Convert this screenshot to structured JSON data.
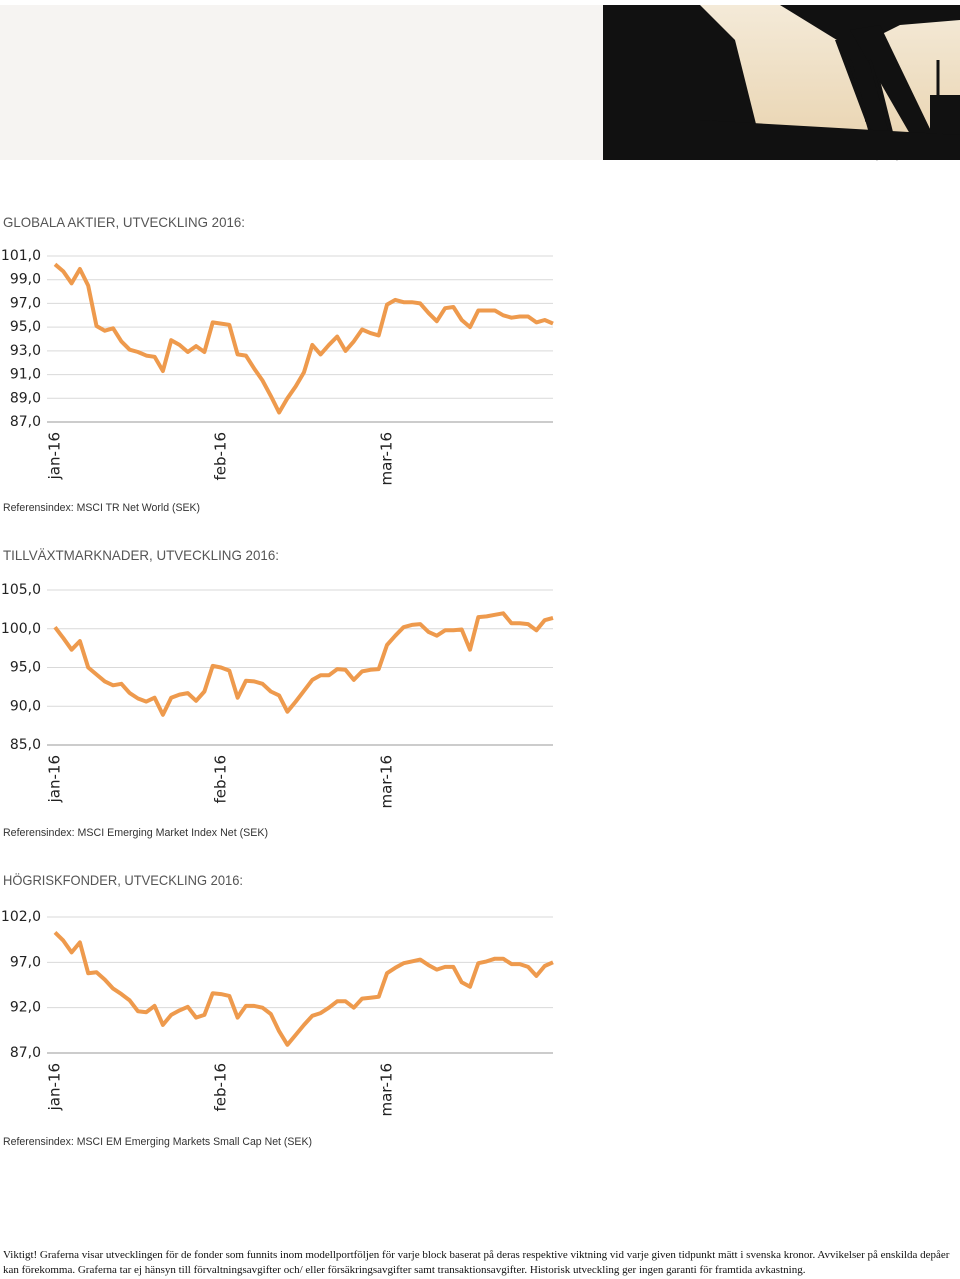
{
  "chart_data": [
    {
      "type": "line",
      "title": "GLOBALA AKTIER, UTVECKLING 2016:",
      "caption": "Referensindex: MSCI TR Net World (SEK)",
      "color": "#ee9a4d",
      "grid": true,
      "ylim": [
        87,
        101
      ],
      "yticks": [
        {
          "value": 87,
          "label": "87,0"
        },
        {
          "value": 89,
          "label": "89,0"
        },
        {
          "value": 91,
          "label": "91,0"
        },
        {
          "value": 93,
          "label": "93,0"
        },
        {
          "value": 95,
          "label": "95,0"
        },
        {
          "value": 97,
          "label": "97,0"
        },
        {
          "value": 99,
          "label": "99,0"
        },
        {
          "value": 101,
          "label": "101,0"
        }
      ],
      "categories": [
        "jan-16",
        null,
        null,
        null,
        null,
        null,
        null,
        null,
        null,
        null,
        null,
        null,
        null,
        null,
        null,
        null,
        null,
        null,
        null,
        null,
        "feb-16",
        null,
        null,
        null,
        null,
        null,
        null,
        null,
        null,
        null,
        null,
        null,
        null,
        null,
        null,
        null,
        null,
        null,
        null,
        null,
        "mar-16",
        null,
        null,
        null,
        null,
        null,
        null,
        null,
        null,
        null,
        null,
        null,
        null,
        null,
        null,
        null,
        null,
        null,
        null,
        null,
        null
      ],
      "values": [
        100.3,
        99.7,
        98.7,
        99.9,
        98.5,
        95.1,
        94.7,
        94.9,
        93.8,
        93.1,
        92.9,
        92.6,
        92.5,
        91.3,
        93.9,
        93.5,
        92.9,
        93.4,
        92.9,
        95.4,
        95.3,
        95.2,
        92.7,
        92.6,
        91.5,
        90.5,
        89.2,
        87.8,
        89.0,
        90.0,
        91.2,
        93.5,
        92.7,
        93.5,
        94.2,
        93.0,
        93.8,
        94.8,
        94.5,
        94.3,
        96.9,
        97.3,
        97.1,
        97.1,
        97.0,
        96.2,
        95.5,
        96.6,
        96.7,
        95.6,
        95.0,
        96.4,
        96.4,
        96.4,
        96.0,
        95.8,
        95.9,
        95.9,
        95.4,
        95.6,
        95.3
      ]
    },
    {
      "type": "line",
      "title": "TILLVÄXTMARKNADER, UTVECKLING 2016:",
      "caption": "Referensindex: MSCI Emerging Market Index Net (SEK)",
      "color": "#ee9a4d",
      "grid": true,
      "ylim": [
        85,
        105
      ],
      "yticks": [
        {
          "value": 85,
          "label": "85,0"
        },
        {
          "value": 90,
          "label": "90,0"
        },
        {
          "value": 95,
          "label": "95,0"
        },
        {
          "value": 100,
          "label": "100,0"
        },
        {
          "value": 105,
          "label": "105,0"
        }
      ],
      "categories": [
        "jan-16",
        null,
        null,
        null,
        null,
        null,
        null,
        null,
        null,
        null,
        null,
        null,
        null,
        null,
        null,
        null,
        null,
        null,
        null,
        null,
        "feb-16",
        null,
        null,
        null,
        null,
        null,
        null,
        null,
        null,
        null,
        null,
        null,
        null,
        null,
        null,
        null,
        null,
        null,
        null,
        null,
        "mar-16",
        null,
        null,
        null,
        null,
        null,
        null,
        null,
        null,
        null,
        null,
        null,
        null,
        null,
        null,
        null,
        null,
        null,
        null,
        null,
        null
      ],
      "values": [
        100.2,
        98.8,
        97.3,
        98.4,
        95.0,
        94.1,
        93.2,
        92.7,
        92.9,
        91.7,
        91.0,
        90.6,
        91.1,
        88.9,
        91.1,
        91.5,
        91.7,
        90.7,
        91.9,
        95.2,
        95.0,
        94.6,
        91.1,
        93.3,
        93.2,
        92.9,
        91.9,
        91.4,
        89.3,
        90.6,
        92.0,
        93.4,
        94.0,
        94.0,
        94.8,
        94.7,
        93.4,
        94.5,
        94.7,
        94.8,
        97.9,
        99.1,
        100.2,
        100.5,
        100.6,
        99.6,
        99.1,
        99.8,
        99.8,
        99.9,
        97.3,
        101.5,
        101.6,
        101.8,
        102.0,
        100.7,
        100.7,
        100.6,
        99.8,
        101.1,
        101.4
      ]
    },
    {
      "type": "line",
      "title": "HÖGRISKFONDER, UTVECKLING 2016:",
      "caption": "Referensindex: MSCI EM Emerging Markets Small Cap Net (SEK)",
      "color": "#ee9a4d",
      "grid": true,
      "ylim": [
        87,
        102
      ],
      "yticks": [
        {
          "value": 87,
          "label": "87,0"
        },
        {
          "value": 92,
          "label": "92,0"
        },
        {
          "value": 97,
          "label": "97,0"
        },
        {
          "value": 102,
          "label": "102,0"
        }
      ],
      "categories": [
        "jan-16",
        null,
        null,
        null,
        null,
        null,
        null,
        null,
        null,
        null,
        null,
        null,
        null,
        null,
        null,
        null,
        null,
        null,
        null,
        null,
        "feb-16",
        null,
        null,
        null,
        null,
        null,
        null,
        null,
        null,
        null,
        null,
        null,
        null,
        null,
        null,
        null,
        null,
        null,
        null,
        null,
        "mar-16",
        null,
        null,
        null,
        null,
        null,
        null,
        null,
        null,
        null,
        null,
        null,
        null,
        null,
        null,
        null,
        null,
        null,
        null,
        null,
        null
      ],
      "values": [
        100.3,
        99.4,
        98.1,
        99.2,
        95.8,
        95.9,
        95.1,
        94.1,
        93.5,
        92.8,
        91.6,
        91.5,
        92.2,
        90.1,
        91.2,
        91.7,
        92.1,
        90.9,
        91.2,
        93.6,
        93.5,
        93.3,
        90.9,
        92.2,
        92.2,
        92.0,
        91.3,
        89.4,
        87.9,
        89.0,
        90.1,
        91.1,
        91.4,
        92.0,
        92.7,
        92.7,
        92.0,
        93.0,
        93.1,
        93.2,
        95.8,
        96.4,
        96.9,
        97.1,
        97.3,
        96.7,
        96.2,
        96.5,
        96.5,
        94.8,
        94.3,
        96.9,
        97.1,
        97.4,
        97.4,
        96.8,
        96.8,
        96.5,
        95.5,
        96.6,
        97.0
      ]
    }
  ],
  "footer": "Viktigt! Graferna visar utvecklingen för de fonder som funnits inom modellportföljen för varje block baserat på deras respektive viktning vid varje given tidpunkt mätt i svenska kronor. Avvikelser på enskilda depåer kan förekomma. Graferna tar ej hänsyn till förvaltningsavgifter och/ eller försäkringsavgifter samt transaktionsavgifter. Historisk utveckling ger ingen garanti för framtida avkastning."
}
